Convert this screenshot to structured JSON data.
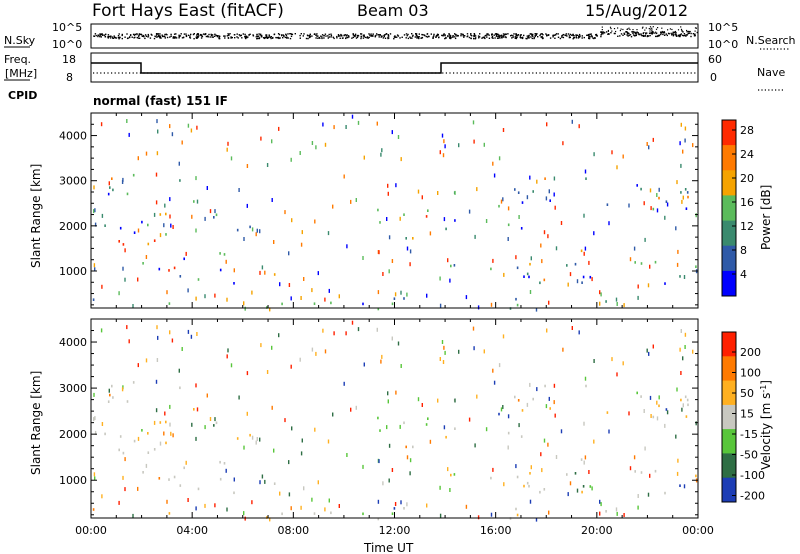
{
  "header": {
    "title": "Fort Hays East (fitACF)",
    "beam": "Beam 03",
    "date": "15/Aug/2012"
  },
  "noise_panel": {
    "left_label": "N.Sky",
    "right_label": "N.Search",
    "left_ticks": [
      "10^5",
      "10^0"
    ],
    "right_ticks": [
      "10^5",
      "10^0"
    ]
  },
  "freq_panel": {
    "left_label_line1": "Freq.",
    "left_label_line2": "[MHz]",
    "right_label": "Nave",
    "left_ticks": [
      "18",
      "8"
    ],
    "right_ticks": [
      "60",
      "0"
    ]
  },
  "cpid": {
    "label": "CPID",
    "value": "normal (fast) 151 IF"
  },
  "colors": {
    "power": [
      "#0000ff",
      "#2f5aa8",
      "#3a8a6e",
      "#5bbb5b",
      "#f5a300",
      "#ff7a00",
      "#ff2a00"
    ],
    "velocity": [
      "#1c3db5",
      "#2e6e44",
      "#58c63a",
      "#c8c8c0",
      "#ffb020",
      "#ff7a00",
      "#ff2000"
    ]
  },
  "chart_data": [
    {
      "type": "heatmap",
      "name": "Power",
      "ylabel": "Slant Range [km]",
      "yticks": [
        1000,
        2000,
        3000,
        4000
      ],
      "ylim": [
        180,
        4500
      ],
      "xlim": [
        0,
        24
      ],
      "xticks": [
        "00:00",
        "04:00",
        "08:00",
        "12:00",
        "16:00",
        "20:00",
        "00:00"
      ],
      "colorbar_label": "Power [dB]",
      "colorbar_ticks": [
        "28",
        "24",
        "20",
        "16",
        "12",
        "8",
        "4"
      ],
      "colorbar_range": [
        0,
        30
      ],
      "grid": false
    },
    {
      "type": "heatmap",
      "name": "Velocity",
      "ylabel": "Slant Range [km]",
      "yticks": [
        1000,
        2000,
        3000,
        4000
      ],
      "ylim": [
        180,
        4500
      ],
      "xlim": [
        0,
        24
      ],
      "xticks": [
        "00:00",
        "04:00",
        "08:00",
        "12:00",
        "16:00",
        "20:00",
        "00:00"
      ],
      "xlabel": "Time UT",
      "colorbar_label": "Velocity [m s^-1]",
      "colorbar_ticks": [
        "200",
        "100",
        "50",
        "15",
        "-15",
        "-50",
        "-100",
        "-200"
      ],
      "colorbar_range": [
        -250,
        250
      ],
      "grid": false
    }
  ],
  "xaxis": {
    "label": "Time UT",
    "ticks": [
      "00:00",
      "04:00",
      "08:00",
      "12:00",
      "16:00",
      "20:00",
      "00:00"
    ]
  }
}
